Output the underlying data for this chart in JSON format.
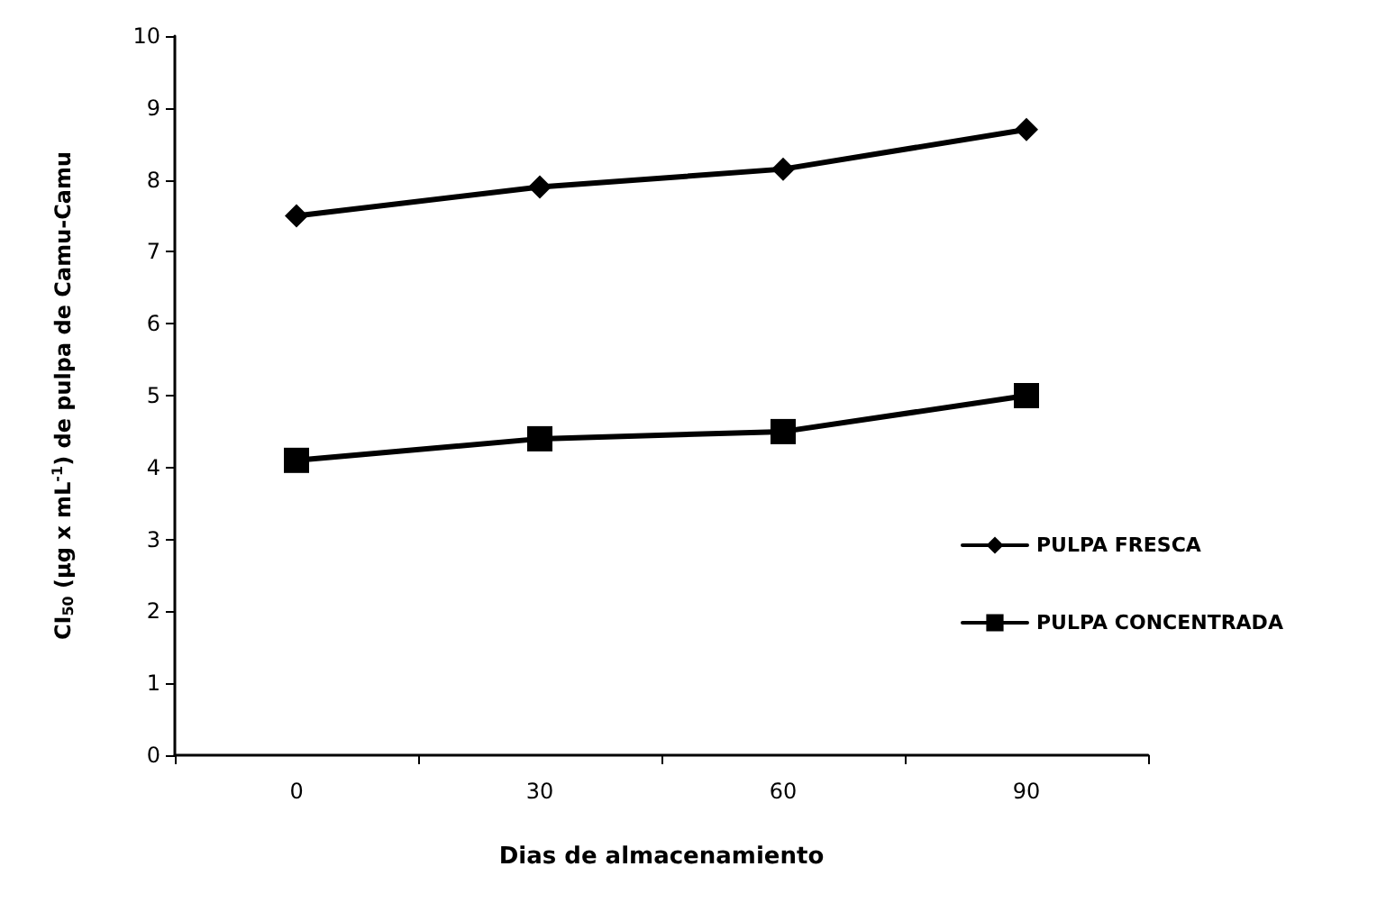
{
  "chart_data": {
    "type": "line",
    "xlabel": "Dias de almacenamiento",
    "ylabel": "CI$_{50}$ (µg x mL$^{-1}$) de pulpa de Camu-Camu",
    "categories": [
      "0",
      "30",
      "60",
      "90"
    ],
    "series": [
      {
        "name": "PULPA FRESCA",
        "color": "#000000",
        "marker": "diamond",
        "values": [
          7.5,
          7.9,
          8.15,
          8.7
        ]
      },
      {
        "name": "PULPA CONCENTRADA",
        "color": "#000000",
        "marker": "square",
        "values": [
          4.1,
          4.4,
          4.5,
          5.0
        ]
      }
    ],
    "ylim": [
      0,
      10
    ],
    "yticks": [
      0,
      1,
      2,
      3,
      4,
      5,
      6,
      7,
      8,
      9,
      10
    ],
    "grid": false,
    "legend": "right",
    "line_style": "solid"
  }
}
